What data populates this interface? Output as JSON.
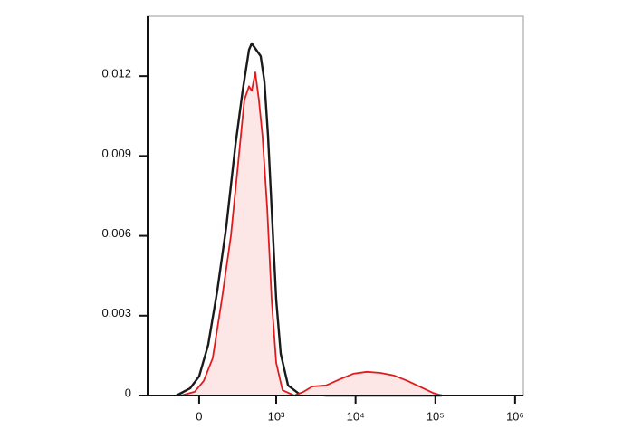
{
  "chart_data": {
    "type": "histogram-overlay",
    "xscale": "asinh",
    "xlim": [
      -460,
      1270000
    ],
    "ylim": [
      0,
      0.01425
    ],
    "xticks": [
      {
        "value": 0,
        "label": "0"
      },
      {
        "value": 1000,
        "label": "10³"
      },
      {
        "value": 10000,
        "label": "10⁴"
      },
      {
        "value": 100000,
        "label": "10⁵"
      },
      {
        "value": 1000000,
        "label": "10⁶"
      }
    ],
    "yticks": [
      0,
      0.003,
      0.006,
      0.009,
      0.012
    ],
    "series": [
      {
        "color": "#1a1a1a",
        "x": [
          -154,
          -58,
          0,
          58,
          120,
          190,
          274,
          353,
          436,
          476,
          547,
          629,
          703,
          785,
          874,
          1000,
          1143,
          1415,
          1940,
          4270,
          121000
        ],
        "values": [
          0,
          0.00027,
          0.00072,
          0.0019,
          0.00395,
          0.00634,
          0.00941,
          0.01145,
          0.01299,
          0.01323,
          0.01299,
          0.01275,
          0.0118,
          0.00975,
          0.00702,
          0.00361,
          0.00157,
          0.00038,
          7e-05,
          0,
          0
        ]
      },
      {
        "color": "#e31a1c",
        "fill": "#fde6e6",
        "x": [
          -120,
          -29,
          29,
          88,
          154,
          230,
          302,
          375,
          436,
          476,
          532,
          595,
          665,
          765,
          874,
          1000,
          1206,
          1700,
          2214,
          2873,
          4270,
          6330,
          9350,
          13860,
          20520,
          30400,
          44900,
          66500,
          93600,
          121000
        ],
        "values": [
          0,
          0.00014,
          0.00055,
          0.0014,
          0.00361,
          0.006,
          0.00873,
          0.01111,
          0.01162,
          0.01145,
          0.01214,
          0.01111,
          0.00975,
          0.00702,
          0.00361,
          0.00123,
          0.0002,
          0,
          0.00014,
          0.00034,
          0.00038,
          0.00061,
          0.00082,
          0.00089,
          0.00085,
          0.00075,
          0.00055,
          0.00031,
          0.0001,
          0
        ]
      }
    ]
  }
}
